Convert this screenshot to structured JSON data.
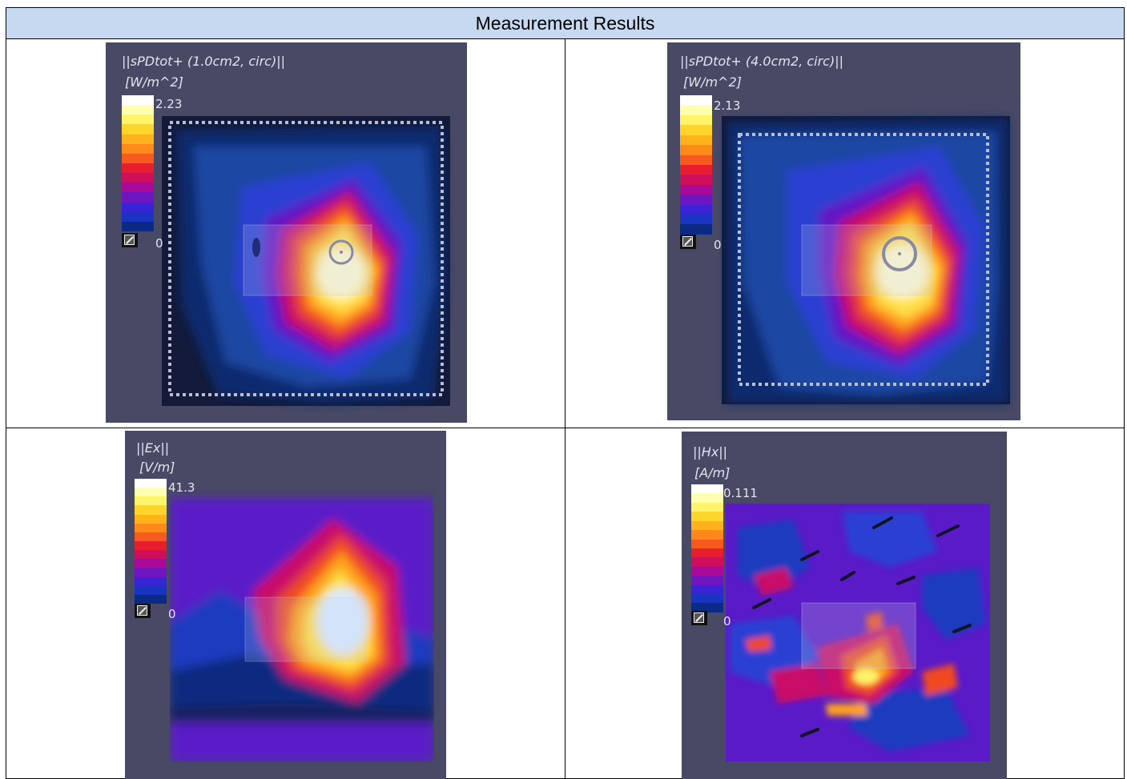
{
  "table": {
    "header": "Measurement Results"
  },
  "colormap": [
    "#ffffff",
    "#ffffb0",
    "#fff36a",
    "#ffd52b",
    "#ffb21c",
    "#ff8a1a",
    "#f65a1f",
    "#e81e2e",
    "#cf0f5a",
    "#a90a98",
    "#6d16c2",
    "#3a22d6",
    "#1a33c0",
    "#0a2a86"
  ],
  "plots": [
    {
      "title": "||sPDtot+ (1.0cm2, circ)||",
      "unit": "[W/m^2]",
      "max_label": "2.23",
      "min_label": "0"
    },
    {
      "title": "||sPDtot+ (4.0cm2, circ)||",
      "unit": "[W/m^2]",
      "max_label": "2.13",
      "min_label": "0"
    },
    {
      "title": "||Ex||",
      "unit": "[V/m]",
      "max_label": "41.3",
      "min_label": "0"
    },
    {
      "title": "||Hx||",
      "unit": "[A/m]",
      "max_label": "0.111",
      "min_label": "0"
    }
  ]
}
